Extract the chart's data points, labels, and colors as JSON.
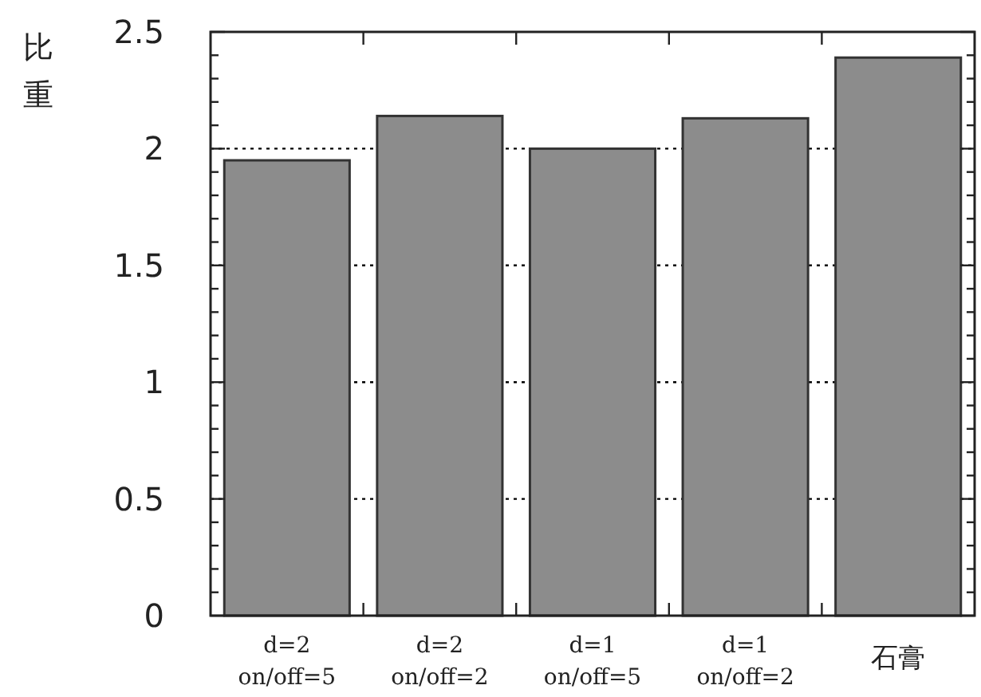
{
  "chart_data": {
    "type": "bar",
    "ylabel": "比重",
    "categories": [
      "d=2\non/off=5",
      "d=2\non/off=2",
      "d=1\non/off=5",
      "d=1\non/off=2",
      "石膏"
    ],
    "values": [
      1.95,
      2.14,
      2.0,
      2.13,
      2.39
    ],
    "color": "#8c8c8c",
    "ylim": [
      0,
      2.5
    ],
    "yticks": [
      0,
      {
        "value": 0.1,
        "label": null
      },
      {
        "value": 0.2,
        "label": null
      },
      {
        "value": 0.3,
        "label": null
      },
      {
        "value": 0.4,
        "label": null
      },
      0.5,
      {
        "value": 0.6,
        "label": null
      },
      {
        "value": 0.7,
        "label": null
      },
      {
        "value": 0.8,
        "label": null
      },
      {
        "value": 0.9,
        "label": null
      },
      1,
      {
        "value": 1.1,
        "label": null
      },
      {
        "value": 1.2,
        "label": null
      },
      {
        "value": 1.3,
        "label": null
      },
      {
        "value": 1.4,
        "label": null
      },
      1.5,
      {
        "value": 1.6,
        "label": null
      },
      {
        "value": 1.7,
        "label": null
      },
      {
        "value": 1.8,
        "label": null
      },
      {
        "value": 1.9,
        "label": null
      },
      2,
      {
        "value": 2.1,
        "label": null
      },
      {
        "value": 2.2,
        "label": null
      },
      {
        "value": 2.3,
        "label": null
      },
      {
        "value": 2.4,
        "label": null
      },
      2.5
    ],
    "grid": "y"
  }
}
